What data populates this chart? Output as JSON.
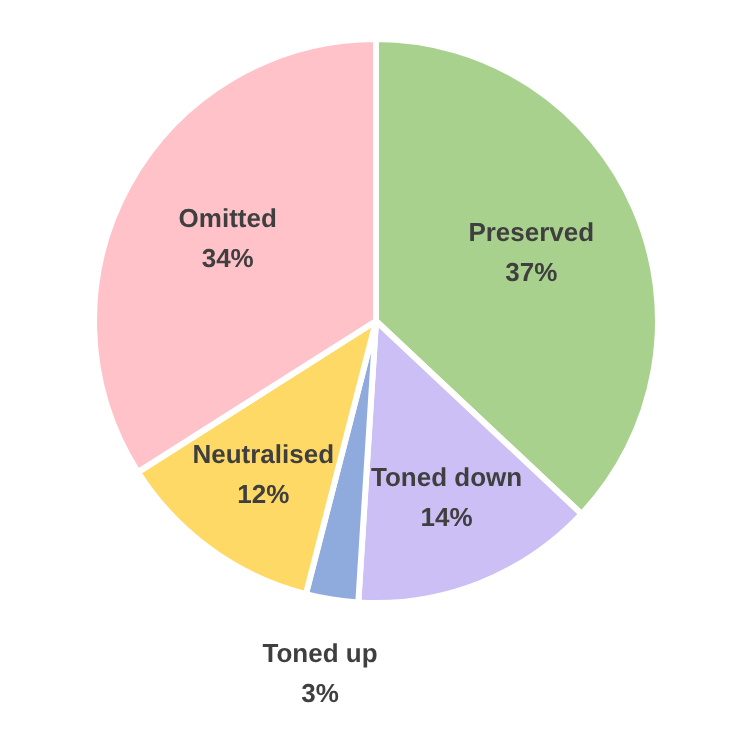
{
  "chart_data": {
    "type": "pie",
    "categories": [
      "Preserved",
      "Toned down",
      "Toned up",
      "Neutralised",
      "Omitted"
    ],
    "values": [
      37,
      14,
      3,
      12,
      34
    ],
    "value_labels": [
      "37%",
      "14%",
      "3%",
      "12%",
      "34%"
    ],
    "colors": [
      "#a9d18e",
      "#ccbff5",
      "#8faadc",
      "#ffd966",
      "#ffc2c8"
    ],
    "legend": false
  }
}
